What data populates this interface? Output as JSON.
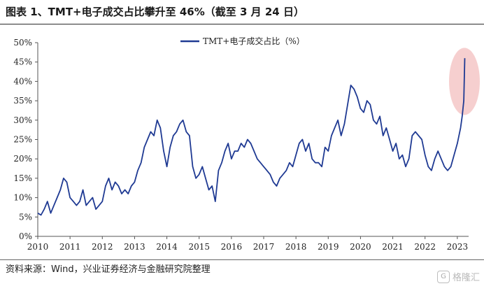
{
  "header": {
    "title": "图表 1、TMT+电子成交占比攀升至 46%（截至 3 月 24 日）"
  },
  "footer": {
    "source": "资料来源：Wind，兴业证券经济与金融研究院整理"
  },
  "watermark": {
    "label": "格隆汇",
    "icon": "gelonghui-logo-icon",
    "glyph": "G"
  },
  "chart_data": {
    "type": "line",
    "title": "",
    "xlabel": "",
    "ylabel": "",
    "ylim": [
      0,
      50
    ],
    "xlim": [
      2010,
      2023.35
    ],
    "grid": false,
    "legend_position": "top-center",
    "y_ticks": [
      "0%",
      "5%",
      "10%",
      "15%",
      "20%",
      "25%",
      "30%",
      "35%",
      "40%",
      "45%",
      "50%"
    ],
    "x_ticks": [
      "2010",
      "2011",
      "2012",
      "2013",
      "2014",
      "2015",
      "2016",
      "2017",
      "2018",
      "2019",
      "2020",
      "2021",
      "2022",
      "2023"
    ],
    "highlight": {
      "description_color": "#f2c2c2",
      "x": 2023.22,
      "y": 40
    },
    "series": [
      {
        "name": "TMT+电子成交占比（%）",
        "color": "#1f3a93",
        "x": [
          2010.0,
          2010.1,
          2010.2,
          2010.3,
          2010.4,
          2010.5,
          2010.6,
          2010.7,
          2010.8,
          2010.9,
          2011.0,
          2011.1,
          2011.2,
          2011.3,
          2011.4,
          2011.5,
          2011.6,
          2011.7,
          2011.8,
          2011.9,
          2012.0,
          2012.1,
          2012.2,
          2012.3,
          2012.4,
          2012.5,
          2012.6,
          2012.7,
          2012.8,
          2012.9,
          2013.0,
          2013.1,
          2013.2,
          2013.3,
          2013.4,
          2013.5,
          2013.6,
          2013.7,
          2013.8,
          2013.9,
          2014.0,
          2014.1,
          2014.2,
          2014.3,
          2014.4,
          2014.5,
          2014.6,
          2014.7,
          2014.8,
          2014.9,
          2015.0,
          2015.1,
          2015.2,
          2015.3,
          2015.4,
          2015.5,
          2015.6,
          2015.7,
          2015.8,
          2015.9,
          2016.0,
          2016.1,
          2016.2,
          2016.3,
          2016.4,
          2016.5,
          2016.6,
          2016.7,
          2016.8,
          2016.9,
          2017.0,
          2017.1,
          2017.2,
          2017.3,
          2017.4,
          2017.5,
          2017.6,
          2017.7,
          2017.8,
          2017.9,
          2018.0,
          2018.1,
          2018.2,
          2018.3,
          2018.4,
          2018.5,
          2018.6,
          2018.7,
          2018.8,
          2018.9,
          2019.0,
          2019.1,
          2019.2,
          2019.3,
          2019.4,
          2019.5,
          2019.6,
          2019.7,
          2019.8,
          2019.9,
          2020.0,
          2020.1,
          2020.2,
          2020.3,
          2020.4,
          2020.5,
          2020.6,
          2020.7,
          2020.8,
          2020.9,
          2021.0,
          2021.1,
          2021.2,
          2021.3,
          2021.4,
          2021.5,
          2021.6,
          2021.7,
          2021.8,
          2021.9,
          2022.0,
          2022.1,
          2022.2,
          2022.3,
          2022.4,
          2022.5,
          2022.6,
          2022.7,
          2022.8,
          2022.9,
          2023.0,
          2023.05,
          2023.1,
          2023.15,
          2023.2,
          2023.23
        ],
        "values": [
          6,
          5.5,
          7,
          9,
          6,
          8,
          10,
          12,
          15,
          14,
          10,
          9,
          8,
          9,
          12,
          8,
          9,
          10,
          7,
          8,
          9,
          13,
          15,
          12,
          14,
          13,
          11,
          12,
          11,
          13,
          14,
          17,
          19,
          23,
          25,
          27,
          26,
          30,
          28,
          22,
          18,
          23,
          26,
          27,
          29,
          30,
          27,
          26,
          18,
          15,
          16,
          18,
          15,
          12,
          13,
          9,
          17,
          19,
          22,
          24,
          20,
          22,
          22,
          24,
          23,
          25,
          24,
          22,
          20,
          19,
          18,
          17,
          16,
          14,
          13,
          15,
          16,
          17,
          19,
          18,
          21,
          24,
          25,
          22,
          24,
          20,
          19,
          19,
          18,
          23,
          22,
          26,
          28,
          30,
          26,
          29,
          34,
          39,
          38,
          36,
          33,
          32,
          35,
          34,
          30,
          29,
          31,
          26,
          28,
          25,
          22,
          24,
          20,
          21,
          18,
          20,
          26,
          27,
          26,
          25,
          21,
          18,
          17,
          20,
          22,
          20,
          18,
          17,
          18,
          21,
          24,
          26,
          28,
          31,
          35,
          46
        ]
      }
    ]
  }
}
